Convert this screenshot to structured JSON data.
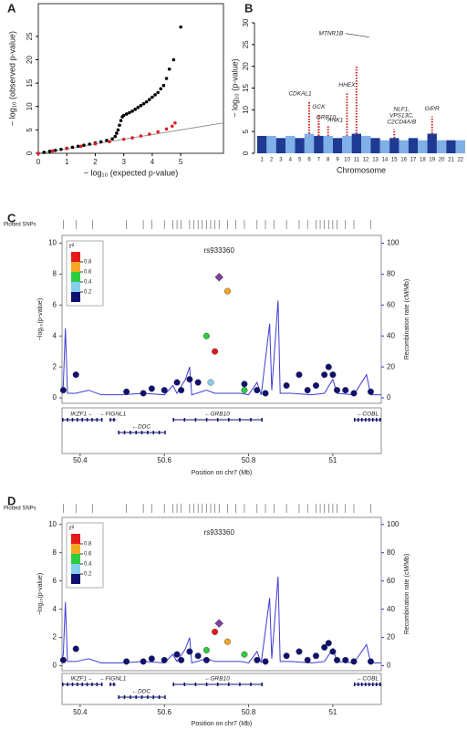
{
  "chart_data": [
    {
      "type": "qq",
      "panel_label": "A",
      "x_label": "− log₁₀ (expected p-value)",
      "y_label": "− log₁₀ (observed p-value)",
      "xlim": [
        0,
        6.5
      ],
      "ylim": [
        0,
        32
      ],
      "xticks": [
        0,
        1,
        2,
        3,
        4,
        5
      ],
      "yticks": [
        0,
        5,
        10,
        15,
        20,
        25
      ],
      "reference_color": "#888888",
      "series": [
        {
          "color": "#000000",
          "x": [
            0,
            0.2,
            0.4,
            0.6,
            0.8,
            1,
            1.2,
            1.4,
            1.6,
            1.8,
            2,
            2.2,
            2.4,
            2.6,
            2.7,
            2.75,
            2.8,
            2.85,
            2.9,
            2.95,
            3,
            3.1,
            3.2,
            3.3,
            3.4,
            3.5,
            3.6,
            3.7,
            3.8,
            3.9,
            4,
            4.1,
            4.2,
            4.3,
            4.4,
            4.5,
            4.6,
            4.75,
            5
          ],
          "values": [
            0,
            0.2,
            0.42,
            0.63,
            0.85,
            1.06,
            1.28,
            1.5,
            1.72,
            1.95,
            2.2,
            2.45,
            2.75,
            3.1,
            3.6,
            4.3,
            5,
            6,
            7,
            7.8,
            8.1,
            8.4,
            8.7,
            9,
            9.4,
            9.8,
            10.2,
            10.6,
            11,
            11.5,
            12,
            12.5,
            13,
            13.8,
            14.5,
            16,
            18,
            20,
            27
          ]
        },
        {
          "color": "#e02020",
          "x": [
            0,
            0.5,
            1,
            1.5,
            2,
            2.5,
            3,
            3.3,
            3.6,
            3.9,
            4.2,
            4.5,
            4.7,
            4.8
          ],
          "values": [
            0,
            0.5,
            1,
            1.5,
            2,
            2.5,
            3,
            3.3,
            3.7,
            4.1,
            4.6,
            5.2,
            5.8,
            6.5
          ]
        }
      ]
    },
    {
      "type": "manhattan",
      "panel_label": "B",
      "x_label": "Chromosome",
      "y_label": "− log₁₀ (p-value)",
      "ylim": [
        0,
        30
      ],
      "yticks": [
        0,
        5,
        10,
        15,
        20,
        25,
        30
      ],
      "categories": [
        "1",
        "2",
        "3",
        "4",
        "5",
        "6",
        "7",
        "8",
        "9",
        "10",
        "11",
        "12",
        "13",
        "14",
        "15",
        "16",
        "17",
        "18",
        "19",
        "20",
        "21",
        "22"
      ],
      "values": [
        4,
        4,
        3.5,
        4,
        3.5,
        4.5,
        4,
        4,
        3.5,
        4,
        4.5,
        4,
        3.5,
        3,
        3.5,
        3,
        3.5,
        3,
        4.5,
        3,
        3,
        3
      ],
      "colors": [
        "#1f3a93",
        "#7fb0e8"
      ],
      "peak_color": "#d42020",
      "peaks": [
        {
          "label": [
            "CDKAL1"
          ],
          "chromosome": 6,
          "value": 12
        },
        {
          "label": [
            "GCK"
          ],
          "chromosome": 7,
          "value": 9
        },
        {
          "label": [
            "GRB10"
          ],
          "chromosome": 7,
          "value": 7
        },
        {
          "label": [
            "ANK1"
          ],
          "chromosome": 8,
          "value": 6.5
        },
        {
          "label": [
            "HHEX"
          ],
          "chromosome": 10,
          "value": 14
        },
        {
          "label": [
            "MTNR1B"
          ],
          "chromosome": 11,
          "value": 20
        },
        {
          "label": [
            "NLF1,",
            "VPS13C,",
            "C2CD4A/B"
          ],
          "chromosome": 15,
          "value": 5.5
        },
        {
          "label": [
            "GIPR"
          ],
          "chromosome": 19,
          "value": 8.5
        }
      ]
    },
    {
      "type": "locuszoom",
      "panel_label": "C",
      "rug_label": "Plotted SNPs",
      "snp_positions": [
        50.36,
        50.39,
        50.43,
        50.51,
        50.55,
        50.57,
        50.6,
        50.62,
        50.63,
        50.64,
        50.66,
        50.67,
        50.68,
        50.69,
        50.7,
        50.71,
        50.72,
        50.73,
        50.75,
        50.77,
        50.79,
        50.82,
        50.84,
        50.86,
        50.89,
        50.92,
        50.94,
        50.96,
        50.97,
        50.98,
        50.99,
        51,
        51.01,
        51.03,
        51.05,
        51.09
      ],
      "xlim": [
        50.357,
        51.115
      ],
      "xticks": [
        50.4,
        50.6,
        50.8,
        51
      ],
      "x_label": "Position on chr7 (Mb)",
      "ylim": [
        -0.35,
        10.5
      ],
      "yticks": [
        0,
        2,
        4,
        6,
        8,
        10
      ],
      "y_label": "−log₁₀(p-value)",
      "y2lim": [
        -3.5,
        105
      ],
      "y2ticks": [
        0,
        20,
        40,
        60,
        80,
        100
      ],
      "y2_label": "Recombination rate (cM/Mb)",
      "recomb": {
        "color": "#3c3cd6",
        "axis": "y2",
        "x": [
          50.357,
          50.36,
          50.365,
          50.37,
          50.39,
          50.42,
          50.45,
          50.5,
          50.55,
          50.6,
          50.62,
          50.63,
          50.65,
          50.66,
          50.665,
          50.7,
          50.72,
          50.75,
          50.78,
          50.8,
          50.82,
          50.83,
          50.85,
          50.855,
          50.87,
          50.875,
          50.9,
          50.95,
          50.98,
          51,
          51.01,
          51.05,
          51.08,
          51.09,
          51.115
        ],
        "values": [
          5,
          8,
          45,
          3,
          3,
          5,
          2,
          2,
          3,
          2,
          8,
          3,
          12,
          20,
          2,
          5,
          3,
          3,
          3,
          2,
          10,
          2,
          48,
          5,
          63,
          3,
          3,
          2,
          3,
          12,
          3,
          2,
          15,
          2,
          2
        ]
      },
      "legend": {
        "title": "r²",
        "ticks": [
          0.8,
          0.6,
          0.4,
          0.2
        ],
        "colors": [
          "#e41a1c",
          "#f5a623",
          "#2ecc40",
          "#87ceeb",
          "#101070"
        ]
      },
      "series": [
        {
          "color": "#101070",
          "x": [
            50.36,
            50.39,
            50.51,
            50.55,
            50.57,
            50.6,
            50.63,
            50.64,
            50.66,
            50.68,
            50.79,
            50.82,
            50.84,
            50.89,
            50.92,
            50.94,
            50.96,
            50.98,
            50.99,
            51,
            51.01,
            51.03,
            51.05,
            51.09
          ],
          "values": [
            0.5,
            1.5,
            0.4,
            0.3,
            0.6,
            0.5,
            1,
            0.5,
            1.2,
            1,
            0.9,
            0.5,
            0.3,
            0.8,
            1.5,
            0.5,
            0.8,
            1.5,
            2,
            1.5,
            0.5,
            0.5,
            0.3,
            0.4
          ]
        },
        {
          "color": "#87ceeb",
          "x": [
            50.71
          ],
          "values": [
            1
          ]
        },
        {
          "color": "#2ecc40",
          "x": [
            50.7,
            50.79
          ],
          "values": [
            4,
            0.5
          ]
        },
        {
          "color": "#f5a623",
          "x": [
            50.75
          ],
          "values": [
            6.9
          ]
        },
        {
          "color": "#e41a1c",
          "x": [
            50.72
          ],
          "values": [
            3
          ]
        }
      ],
      "lead": {
        "label": "rs933360",
        "x": 50.73,
        "value": 7.8,
        "color": "#7b3f9e"
      },
      "genes": [
        {
          "label": "IKZF1→",
          "start": 50.34,
          "end": 50.45
        },
        {
          "label": "←FIGNL1",
          "start": 50.47,
          "end": 50.485
        },
        {
          "label": "←DDC",
          "start": 50.49,
          "end": 50.6
        },
        {
          "label": "←GRB10",
          "start": 50.62,
          "end": 50.83
        },
        {
          "label": "←COBL",
          "start": 51.05,
          "end": 51.13
        }
      ]
    },
    {
      "type": "locuszoom",
      "panel_label": "D",
      "rug_label": "Plotted SNPs",
      "snp_positions": [
        50.36,
        50.39,
        50.43,
        50.51,
        50.55,
        50.57,
        50.6,
        50.62,
        50.63,
        50.64,
        50.66,
        50.67,
        50.68,
        50.69,
        50.7,
        50.71,
        50.72,
        50.73,
        50.75,
        50.77,
        50.79,
        50.82,
        50.84,
        50.86,
        50.89,
        50.92,
        50.94,
        50.96,
        50.97,
        50.98,
        50.99,
        51,
        51.01,
        51.03,
        51.05,
        51.09
      ],
      "xlim": [
        50.357,
        51.115
      ],
      "xticks": [
        50.4,
        50.6,
        50.8,
        51
      ],
      "x_label": "Position on chr7 (Mb)",
      "ylim": [
        -0.35,
        10.5
      ],
      "yticks": [
        0,
        2,
        4,
        6,
        8,
        10
      ],
      "y_label": "−log₁₀(p-value)",
      "y2lim": [
        -3.5,
        105
      ],
      "y2ticks": [
        0,
        20,
        40,
        60,
        80,
        100
      ],
      "y2_label": "Recombination rate (cM/Mb)",
      "recomb": {
        "color": "#3c3cd6",
        "axis": "y2",
        "x": [
          50.357,
          50.36,
          50.365,
          50.37,
          50.39,
          50.42,
          50.45,
          50.5,
          50.55,
          50.6,
          50.62,
          50.63,
          50.65,
          50.66,
          50.665,
          50.7,
          50.72,
          50.75,
          50.78,
          50.8,
          50.82,
          50.83,
          50.85,
          50.855,
          50.87,
          50.875,
          50.9,
          50.95,
          50.98,
          51,
          51.01,
          51.05,
          51.08,
          51.09,
          51.115
        ],
        "values": [
          5,
          8,
          45,
          3,
          3,
          5,
          2,
          2,
          3,
          2,
          8,
          3,
          12,
          20,
          2,
          5,
          3,
          3,
          3,
          2,
          10,
          2,
          48,
          5,
          63,
          3,
          3,
          2,
          3,
          12,
          3,
          2,
          15,
          2,
          2
        ]
      },
      "legend": {
        "title": "r²",
        "ticks": [
          0.8,
          0.6,
          0.4,
          0.2
        ],
        "colors": [
          "#e41a1c",
          "#f5a623",
          "#2ecc40",
          "#87ceeb",
          "#101070"
        ]
      },
      "series": [
        {
          "color": "#101070",
          "x": [
            50.36,
            50.39,
            50.51,
            50.55,
            50.57,
            50.6,
            50.63,
            50.64,
            50.66,
            50.68,
            50.7,
            50.82,
            50.84,
            50.89,
            50.92,
            50.94,
            50.96,
            50.98,
            50.99,
            51,
            51.01,
            51.03,
            51.05,
            51.09
          ],
          "values": [
            0.4,
            1.2,
            0.3,
            0.3,
            0.5,
            0.4,
            0.8,
            0.4,
            1,
            0.7,
            0.4,
            0.4,
            0.3,
            0.7,
            1,
            0.4,
            0.7,
            1.3,
            1.6,
            1,
            0.4,
            0.4,
            0.3,
            0.3
          ]
        },
        {
          "color": "#2ecc40",
          "x": [
            50.7,
            50.79
          ],
          "values": [
            1.1,
            0.8
          ]
        },
        {
          "color": "#f5a623",
          "x": [
            50.75
          ],
          "values": [
            1.7
          ]
        },
        {
          "color": "#e41a1c",
          "x": [
            50.72
          ],
          "values": [
            2.4
          ]
        }
      ],
      "lead": {
        "label": "rs933360",
        "x": 50.73,
        "value": 3,
        "color": "#7b3f9e"
      },
      "genes": [
        {
          "label": "IKZF1→",
          "start": 50.34,
          "end": 50.45
        },
        {
          "label": "←FIGNL1",
          "start": 50.47,
          "end": 50.485
        },
        {
          "label": "←DDC",
          "start": 50.49,
          "end": 50.6
        },
        {
          "label": "←GRB10",
          "start": 50.62,
          "end": 50.83
        },
        {
          "label": "←COBL",
          "start": 51.05,
          "end": 51.13
        }
      ]
    }
  ]
}
